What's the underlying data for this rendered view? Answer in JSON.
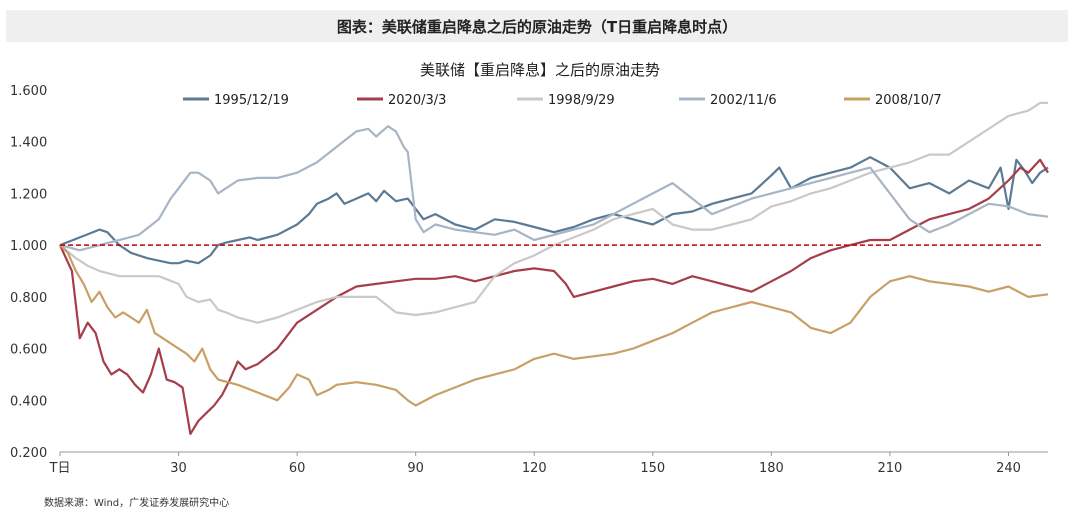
{
  "header": {
    "title": "图表：美联储重启降息之后的原油走势（T日重启降息时点）"
  },
  "source": "数据来源：Wind，广发证券发展研究中心",
  "chart_data": {
    "type": "line",
    "title": "美联储【重启降息】之后的原油走势",
    "xlabel": "",
    "ylabel": "",
    "xlim": [
      0,
      250
    ],
    "ylim": [
      0.2,
      1.6
    ],
    "x_ticks": [
      0,
      30,
      60,
      90,
      120,
      150,
      180,
      210,
      240
    ],
    "x_tick_labels": [
      "T日",
      "30",
      "60",
      "90",
      "120",
      "150",
      "180",
      "210",
      "240"
    ],
    "y_ticks": [
      0.2,
      0.4,
      0.6,
      0.8,
      1.0,
      1.2,
      1.4,
      1.6
    ],
    "y_tick_labels": [
      "0.200",
      "0.400",
      "0.600",
      "0.800",
      "1.000",
      "1.200",
      "1.400",
      "1.600"
    ],
    "reference_line": {
      "value": 1.0,
      "color": "#c00000",
      "style": "dashed"
    },
    "legend_position": "top",
    "series": [
      {
        "name": "1995/12/19",
        "color": "#5b7a93",
        "x": [
          0,
          5,
          10,
          12,
          15,
          18,
          22,
          25,
          28,
          30,
          32,
          35,
          38,
          40,
          42,
          45,
          48,
          50,
          55,
          60,
          63,
          65,
          68,
          70,
          72,
          75,
          78,
          80,
          82,
          85,
          88,
          90,
          92,
          95,
          100,
          105,
          110,
          115,
          120,
          125,
          130,
          135,
          140,
          145,
          150,
          155,
          160,
          165,
          170,
          175,
          180,
          182,
          185,
          190,
          195,
          200,
          205,
          210,
          215,
          220,
          225,
          230,
          235,
          238,
          240,
          242,
          244,
          246,
          248,
          250
        ],
        "values": [
          1.0,
          1.03,
          1.06,
          1.05,
          1.0,
          0.97,
          0.95,
          0.94,
          0.93,
          0.93,
          0.94,
          0.93,
          0.96,
          1.0,
          1.01,
          1.02,
          1.03,
          1.02,
          1.04,
          1.08,
          1.12,
          1.16,
          1.18,
          1.2,
          1.16,
          1.18,
          1.2,
          1.17,
          1.21,
          1.17,
          1.18,
          1.14,
          1.1,
          1.12,
          1.08,
          1.06,
          1.1,
          1.09,
          1.07,
          1.05,
          1.07,
          1.1,
          1.12,
          1.1,
          1.08,
          1.12,
          1.13,
          1.16,
          1.18,
          1.2,
          1.27,
          1.3,
          1.22,
          1.26,
          1.28,
          1.3,
          1.34,
          1.3,
          1.22,
          1.24,
          1.2,
          1.25,
          1.22,
          1.3,
          1.14,
          1.33,
          1.29,
          1.24,
          1.28,
          1.3
        ]
      },
      {
        "name": "2020/3/3",
        "color": "#a63d4a",
        "x": [
          0,
          3,
          5,
          7,
          9,
          11,
          13,
          15,
          17,
          19,
          21,
          23,
          25,
          27,
          29,
          31,
          33,
          35,
          37,
          39,
          41,
          43,
          45,
          47,
          50,
          55,
          60,
          65,
          70,
          75,
          80,
          85,
          90,
          95,
          100,
          105,
          110,
          115,
          120,
          125,
          128,
          130,
          135,
          140,
          145,
          150,
          155,
          160,
          165,
          170,
          175,
          180,
          185,
          190,
          195,
          200,
          205,
          210,
          215,
          220,
          225,
          230,
          235,
          240,
          243,
          245,
          248,
          250
        ],
        "values": [
          1.0,
          0.9,
          0.64,
          0.7,
          0.66,
          0.55,
          0.5,
          0.52,
          0.5,
          0.46,
          0.43,
          0.5,
          0.6,
          0.48,
          0.47,
          0.45,
          0.27,
          0.32,
          0.35,
          0.38,
          0.42,
          0.48,
          0.55,
          0.52,
          0.54,
          0.6,
          0.7,
          0.75,
          0.8,
          0.84,
          0.85,
          0.86,
          0.87,
          0.87,
          0.88,
          0.86,
          0.88,
          0.9,
          0.91,
          0.9,
          0.85,
          0.8,
          0.82,
          0.84,
          0.86,
          0.87,
          0.85,
          0.88,
          0.86,
          0.84,
          0.82,
          0.86,
          0.9,
          0.95,
          0.98,
          1.0,
          1.02,
          1.02,
          1.06,
          1.1,
          1.12,
          1.14,
          1.18,
          1.25,
          1.3,
          1.28,
          1.33,
          1.28
        ]
      },
      {
        "name": "1998/9/29",
        "color": "#c9c9c9",
        "x": [
          0,
          4,
          7,
          10,
          15,
          20,
          25,
          30,
          32,
          35,
          38,
          40,
          42,
          45,
          50,
          55,
          60,
          65,
          70,
          75,
          80,
          85,
          90,
          95,
          100,
          105,
          110,
          115,
          120,
          125,
          130,
          135,
          140,
          145,
          150,
          155,
          160,
          165,
          170,
          175,
          180,
          185,
          190,
          195,
          200,
          205,
          210,
          215,
          220,
          225,
          230,
          235,
          240,
          245,
          248,
          250
        ],
        "values": [
          1.0,
          0.95,
          0.92,
          0.9,
          0.88,
          0.88,
          0.88,
          0.85,
          0.8,
          0.78,
          0.79,
          0.75,
          0.74,
          0.72,
          0.7,
          0.72,
          0.75,
          0.78,
          0.8,
          0.8,
          0.8,
          0.74,
          0.73,
          0.74,
          0.76,
          0.78,
          0.88,
          0.93,
          0.96,
          1.0,
          1.03,
          1.06,
          1.1,
          1.12,
          1.14,
          1.08,
          1.06,
          1.06,
          1.08,
          1.1,
          1.15,
          1.17,
          1.2,
          1.22,
          1.25,
          1.28,
          1.3,
          1.32,
          1.35,
          1.35,
          1.4,
          1.45,
          1.5,
          1.52,
          1.55,
          1.55
        ]
      },
      {
        "name": "2002/11/6",
        "color": "#a7b5c4",
        "x": [
          0,
          5,
          10,
          15,
          20,
          25,
          28,
          30,
          33,
          35,
          38,
          40,
          45,
          50,
          55,
          60,
          65,
          70,
          75,
          78,
          80,
          83,
          85,
          87,
          88,
          90,
          92,
          95,
          100,
          105,
          110,
          115,
          120,
          125,
          130,
          135,
          140,
          145,
          150,
          155,
          160,
          165,
          170,
          175,
          180,
          185,
          190,
          195,
          200,
          205,
          210,
          215,
          220,
          225,
          230,
          235,
          240,
          245,
          250
        ],
        "values": [
          1.0,
          0.98,
          1.0,
          1.02,
          1.04,
          1.1,
          1.18,
          1.22,
          1.28,
          1.28,
          1.25,
          1.2,
          1.25,
          1.26,
          1.26,
          1.28,
          1.32,
          1.38,
          1.44,
          1.45,
          1.42,
          1.46,
          1.44,
          1.38,
          1.36,
          1.1,
          1.05,
          1.08,
          1.06,
          1.05,
          1.04,
          1.06,
          1.02,
          1.04,
          1.06,
          1.08,
          1.12,
          1.16,
          1.2,
          1.24,
          1.18,
          1.12,
          1.15,
          1.18,
          1.2,
          1.22,
          1.24,
          1.26,
          1.28,
          1.3,
          1.2,
          1.1,
          1.05,
          1.08,
          1.12,
          1.16,
          1.15,
          1.12,
          1.11
        ]
      },
      {
        "name": "2008/10/7",
        "color": "#c8a066",
        "x": [
          0,
          2,
          4,
          6,
          8,
          10,
          12,
          14,
          16,
          18,
          20,
          22,
          24,
          26,
          28,
          30,
          32,
          34,
          36,
          38,
          40,
          45,
          50,
          55,
          58,
          60,
          63,
          65,
          68,
          70,
          75,
          80,
          85,
          88,
          90,
          95,
          100,
          105,
          110,
          115,
          120,
          125,
          130,
          135,
          140,
          145,
          150,
          155,
          160,
          165,
          170,
          175,
          180,
          185,
          190,
          195,
          200,
          205,
          210,
          215,
          220,
          225,
          230,
          235,
          240,
          245,
          250
        ],
        "values": [
          1.0,
          0.97,
          0.9,
          0.85,
          0.78,
          0.82,
          0.76,
          0.72,
          0.74,
          0.72,
          0.7,
          0.75,
          0.66,
          0.64,
          0.62,
          0.6,
          0.58,
          0.55,
          0.6,
          0.52,
          0.48,
          0.46,
          0.43,
          0.4,
          0.45,
          0.5,
          0.48,
          0.42,
          0.44,
          0.46,
          0.47,
          0.46,
          0.44,
          0.4,
          0.38,
          0.42,
          0.45,
          0.48,
          0.5,
          0.52,
          0.56,
          0.58,
          0.56,
          0.57,
          0.58,
          0.6,
          0.63,
          0.66,
          0.7,
          0.74,
          0.76,
          0.78,
          0.76,
          0.74,
          0.68,
          0.66,
          0.7,
          0.8,
          0.86,
          0.88,
          0.86,
          0.85,
          0.84,
          0.82,
          0.84,
          0.8,
          0.81
        ]
      }
    ]
  }
}
